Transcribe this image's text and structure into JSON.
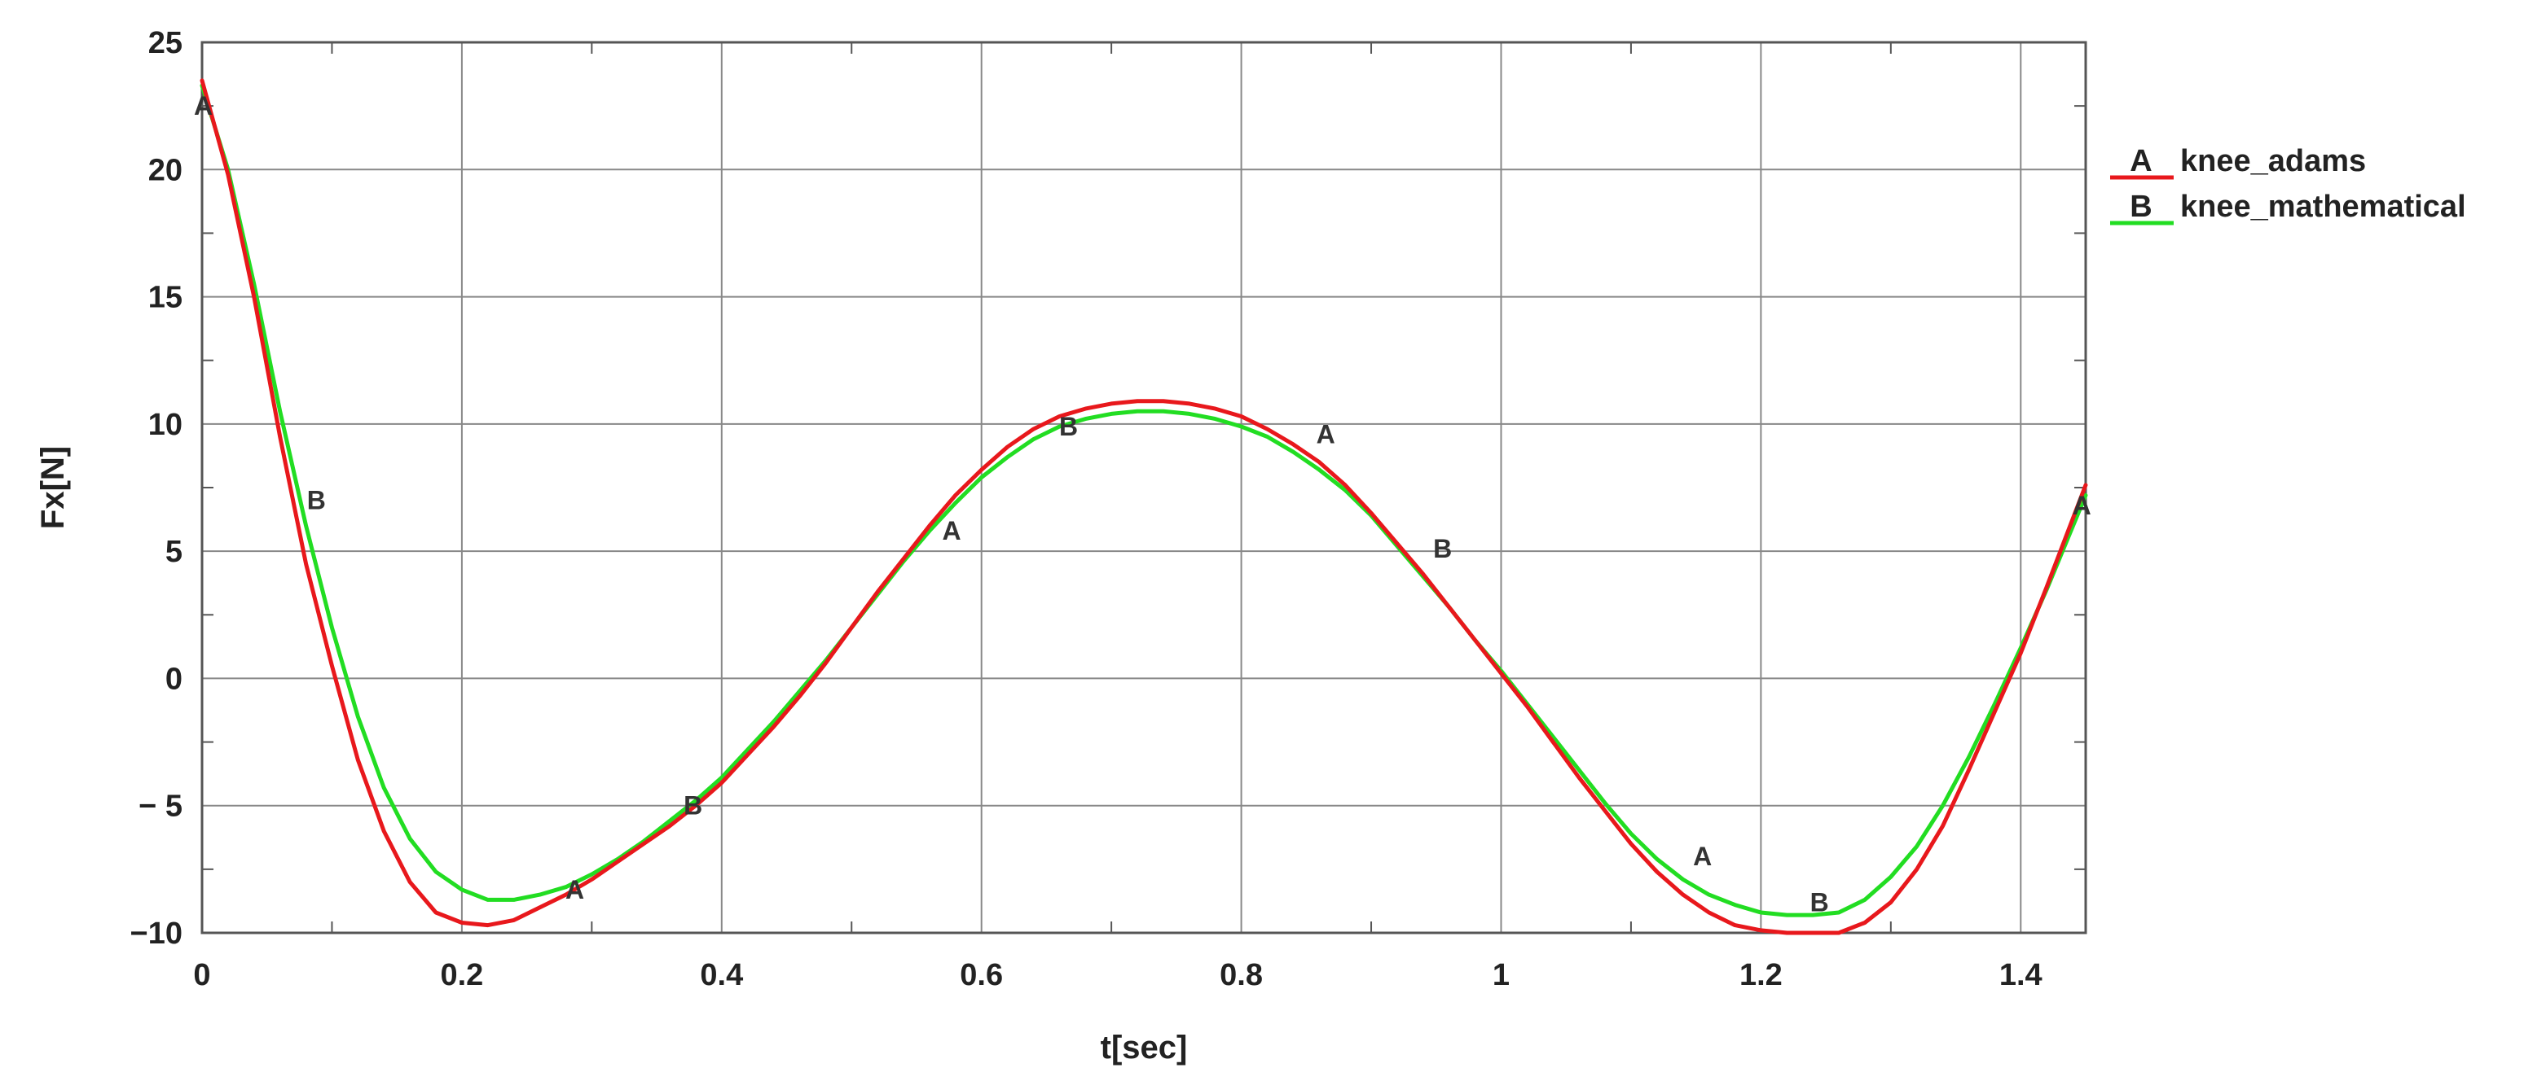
{
  "chart_data": {
    "type": "line",
    "title": "",
    "xlabel": "t[sec]",
    "ylabel": "Fx[N]",
    "xlim": [
      0,
      1.45
    ],
    "ylim": [
      -10,
      25
    ],
    "grid": true,
    "legend_position": "right",
    "x_ticks": [
      {
        "value": 0,
        "label": "0"
      },
      {
        "value": 0.2,
        "label": "0.2"
      },
      {
        "value": 0.4,
        "label": "0.4"
      },
      {
        "value": 0.6,
        "label": "0.6"
      },
      {
        "value": 0.8,
        "label": "0.8"
      },
      {
        "value": 1.0,
        "label": "1"
      },
      {
        "value": 1.2,
        "label": "1.2"
      },
      {
        "value": 1.4,
        "label": "1.4"
      }
    ],
    "y_ticks": [
      {
        "value": 25,
        "label": "25"
      },
      {
        "value": 20,
        "label": "20"
      },
      {
        "value": 15,
        "label": "15"
      },
      {
        "value": 10,
        "label": "10"
      },
      {
        "value": 5,
        "label": "5"
      },
      {
        "value": 0,
        "label": "0"
      },
      {
        "value": -5,
        "label": "− 5"
      },
      {
        "value": -10,
        "label": "−10"
      }
    ],
    "series": [
      {
        "name": "knee_adams",
        "marker": "A",
        "color": "#e8181c",
        "x": [
          0,
          0.02,
          0.04,
          0.06,
          0.08,
          0.1,
          0.12,
          0.14,
          0.16,
          0.18,
          0.2,
          0.22,
          0.24,
          0.26,
          0.28,
          0.3,
          0.32,
          0.34,
          0.36,
          0.38,
          0.4,
          0.42,
          0.44,
          0.46,
          0.48,
          0.5,
          0.52,
          0.54,
          0.56,
          0.58,
          0.6,
          0.62,
          0.64,
          0.66,
          0.68,
          0.7,
          0.72,
          0.74,
          0.76,
          0.78,
          0.8,
          0.82,
          0.84,
          0.86,
          0.88,
          0.9,
          0.92,
          0.94,
          0.96,
          0.98,
          1.0,
          1.02,
          1.04,
          1.06,
          1.08,
          1.1,
          1.12,
          1.14,
          1.16,
          1.18,
          1.2,
          1.22,
          1.24,
          1.26,
          1.28,
          1.3,
          1.32,
          1.34,
          1.36,
          1.38,
          1.4,
          1.42,
          1.45
        ],
        "y": [
          23.5,
          19.8,
          15.0,
          9.5,
          4.5,
          0.5,
          -3.2,
          -6.0,
          -8.0,
          -9.2,
          -9.6,
          -9.7,
          -9.5,
          -9.0,
          -8.5,
          -7.9,
          -7.2,
          -6.5,
          -5.8,
          -5.0,
          -4.1,
          -3.0,
          -1.9,
          -0.7,
          0.6,
          2.0,
          3.4,
          4.7,
          6.0,
          7.2,
          8.2,
          9.1,
          9.8,
          10.3,
          10.6,
          10.8,
          10.9,
          10.9,
          10.8,
          10.6,
          10.3,
          9.8,
          9.2,
          8.5,
          7.6,
          6.5,
          5.3,
          4.1,
          2.8,
          1.5,
          0.2,
          -1.1,
          -2.5,
          -3.9,
          -5.2,
          -6.5,
          -7.6,
          -8.5,
          -9.2,
          -9.7,
          -9.9,
          -10.0,
          -10.0,
          -10.0,
          -9.6,
          -8.8,
          -7.5,
          -5.8,
          -3.6,
          -1.3,
          1.0,
          3.6,
          7.6
        ],
        "marker_labels": [
          {
            "x": 0.001,
            "y": 22.5
          },
          {
            "x": 0.287,
            "y": -8.3
          },
          {
            "x": 0.577,
            "y": 5.8
          },
          {
            "x": 0.865,
            "y": 9.6
          },
          {
            "x": 1.155,
            "y": -7.0
          },
          {
            "x": 1.447,
            "y": 6.8
          }
        ]
      },
      {
        "name": "knee_mathematical",
        "marker": "B",
        "color": "#22dd22",
        "x": [
          0,
          0.02,
          0.04,
          0.06,
          0.08,
          0.1,
          0.12,
          0.14,
          0.16,
          0.18,
          0.2,
          0.22,
          0.24,
          0.26,
          0.28,
          0.3,
          0.32,
          0.34,
          0.36,
          0.38,
          0.4,
          0.42,
          0.44,
          0.46,
          0.48,
          0.5,
          0.52,
          0.54,
          0.56,
          0.58,
          0.6,
          0.62,
          0.64,
          0.66,
          0.68,
          0.7,
          0.72,
          0.74,
          0.76,
          0.78,
          0.8,
          0.82,
          0.84,
          0.86,
          0.88,
          0.9,
          0.92,
          0.94,
          0.96,
          0.98,
          1.0,
          1.02,
          1.04,
          1.06,
          1.08,
          1.1,
          1.12,
          1.14,
          1.16,
          1.18,
          1.2,
          1.22,
          1.24,
          1.26,
          1.28,
          1.3,
          1.32,
          1.34,
          1.36,
          1.38,
          1.4,
          1.42,
          1.45
        ],
        "y": [
          23.3,
          20.0,
          15.5,
          10.5,
          6.0,
          2.0,
          -1.5,
          -4.3,
          -6.3,
          -7.6,
          -8.3,
          -8.7,
          -8.7,
          -8.5,
          -8.2,
          -7.7,
          -7.1,
          -6.4,
          -5.6,
          -4.8,
          -3.9,
          -2.8,
          -1.7,
          -0.5,
          0.7,
          2.0,
          3.3,
          4.6,
          5.8,
          6.9,
          7.9,
          8.7,
          9.4,
          9.9,
          10.2,
          10.4,
          10.5,
          10.5,
          10.4,
          10.2,
          9.9,
          9.5,
          8.9,
          8.2,
          7.4,
          6.4,
          5.2,
          4.0,
          2.8,
          1.5,
          0.3,
          -1.0,
          -2.3,
          -3.6,
          -4.9,
          -6.1,
          -7.1,
          -7.9,
          -8.5,
          -8.9,
          -9.2,
          -9.3,
          -9.3,
          -9.2,
          -8.7,
          -7.8,
          -6.6,
          -5.0,
          -3.1,
          -1.0,
          1.2,
          3.5,
          7.2
        ],
        "marker_labels": [
          {
            "x": 0.088,
            "y": 7.0
          },
          {
            "x": 0.378,
            "y": -5.0
          },
          {
            "x": 0.667,
            "y": 9.9
          },
          {
            "x": 0.955,
            "y": 5.1
          },
          {
            "x": 1.245,
            "y": -8.8
          }
        ]
      }
    ]
  }
}
